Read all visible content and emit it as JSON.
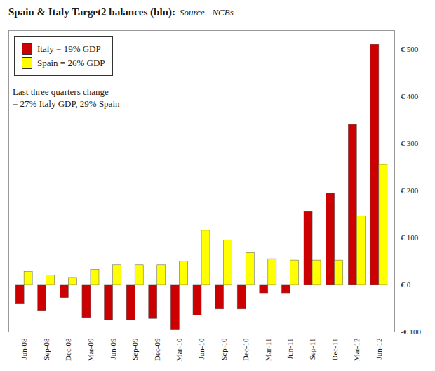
{
  "chart_data": {
    "type": "bar",
    "title": "Spain & Italy Target2 balances (bln):",
    "subtitle": "Source - NCBs",
    "annotations": [
      "Last three quarters change",
      "= 27% Italy GDP, 29% Spain"
    ],
    "categories": [
      "Jun-08",
      "Sep-08",
      "Dec-08",
      "Mar-09",
      "Jun-09",
      "Sep-09",
      "Dec-09",
      "Mar-10",
      "Jun-10",
      "Sep-10",
      "Dec-10",
      "Mar-11",
      "Jun-11",
      "Sep-11",
      "Dec-11",
      "Mar-12",
      "Jun-12"
    ],
    "series": [
      {
        "name": "Italy = 19% GDP",
        "color": "#cc0000",
        "values": [
          -40,
          -55,
          -28,
          -70,
          -75,
          -75,
          -72,
          -95,
          -65,
          -52,
          -52,
          -18,
          -18,
          155,
          195,
          340,
          510
        ]
      },
      {
        "name": "Spain = 26% GDP",
        "color": "#ffff00",
        "values": [
          28,
          20,
          15,
          32,
          42,
          42,
          42,
          50,
          115,
          95,
          68,
          55,
          52,
          52,
          52,
          145,
          255
        ]
      }
    ],
    "ylim": [
      -100,
      540
    ],
    "yticks": [
      {
        "value": -100,
        "label": "-€ 100"
      },
      {
        "value": 0,
        "label": "€ 0"
      },
      {
        "value": 100,
        "label": "€ 100"
      },
      {
        "value": 200,
        "label": "€ 200"
      },
      {
        "value": 300,
        "label": "€ 300"
      },
      {
        "value": 400,
        "label": "€ 400"
      },
      {
        "value": 500,
        "label": "€ 500"
      }
    ],
    "grid": false,
    "legend": "upper left"
  }
}
